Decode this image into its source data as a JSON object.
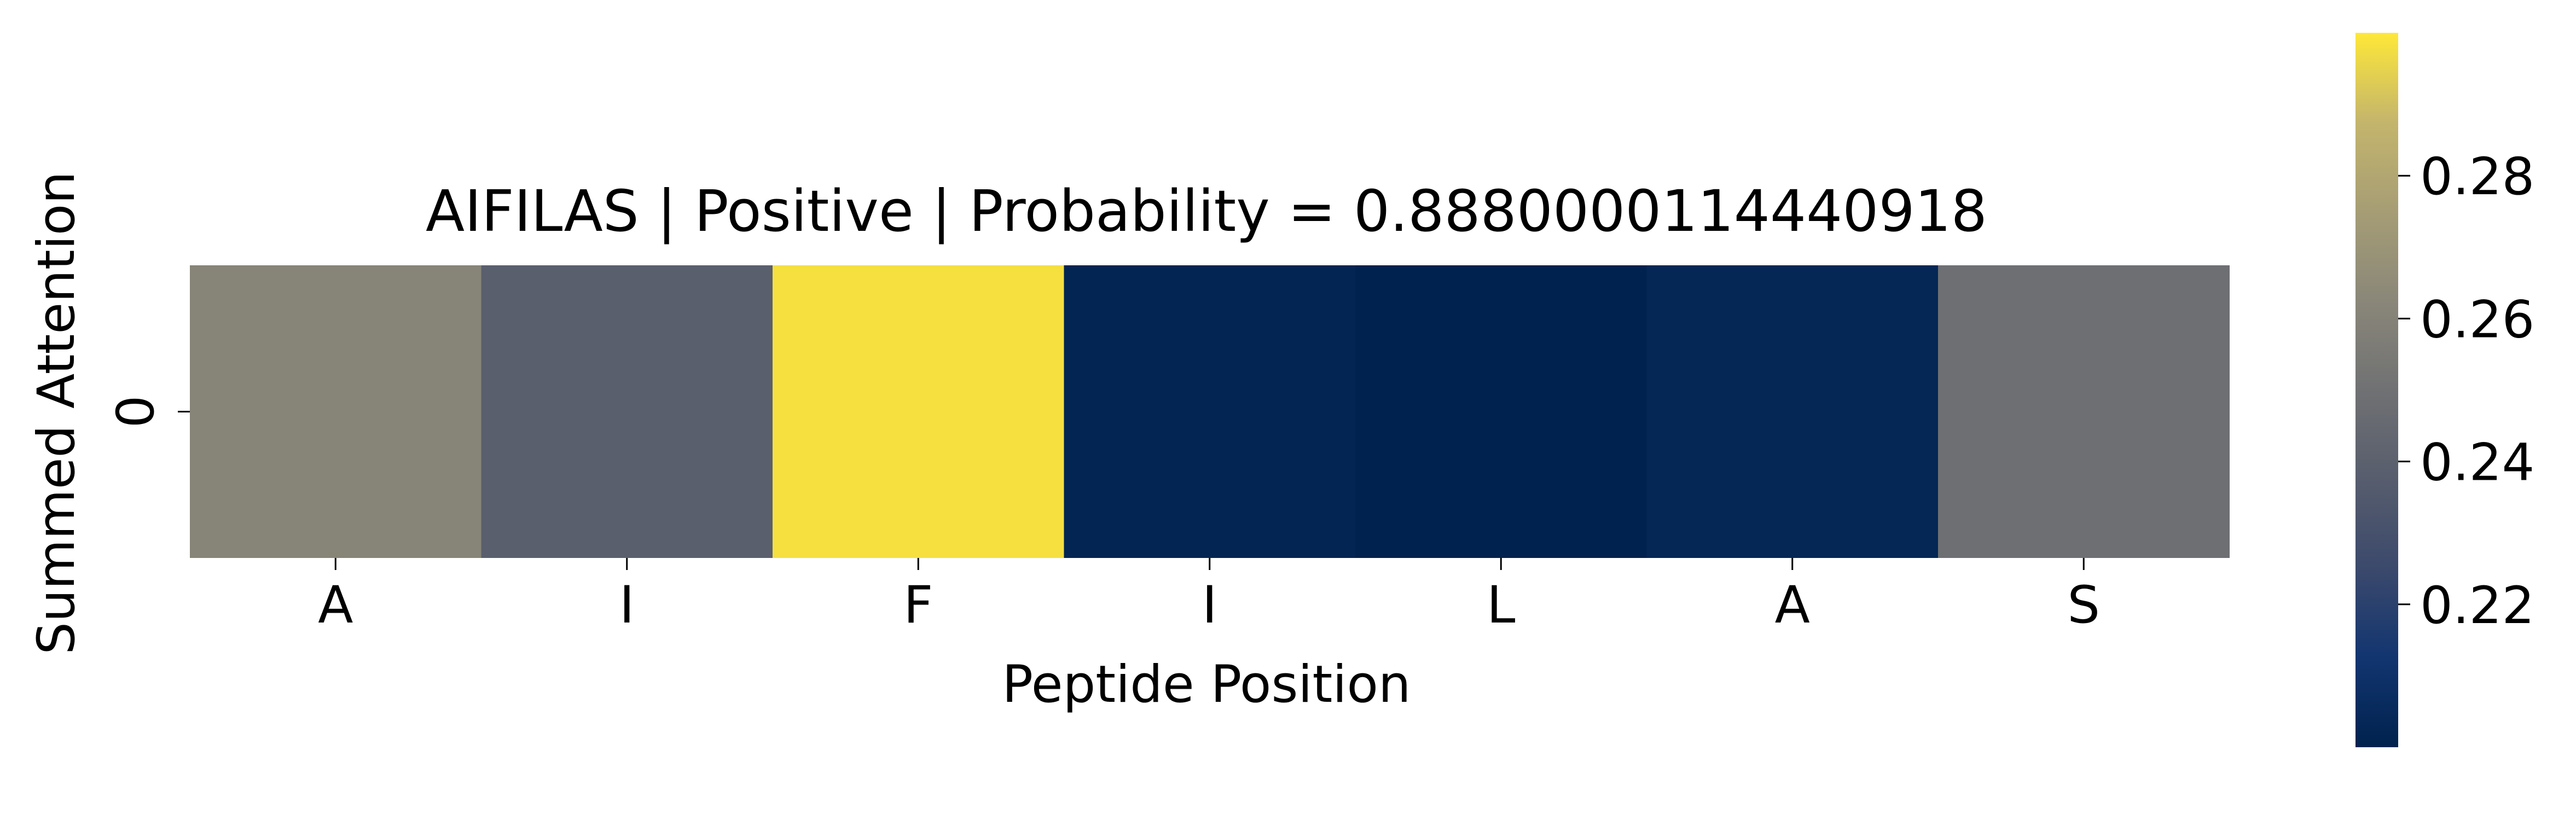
{
  "chart_data": {
    "type": "heatmap",
    "title": "AIFILAS | Positive | Probability = 0.8880000114440918",
    "xlabel": "Peptide Position",
    "ylabel": "Summed Attention",
    "x_categories": [
      "A",
      "I",
      "F",
      "I",
      "L",
      "A",
      "S"
    ],
    "y_categories": [
      "0"
    ],
    "values": [
      [
        0.261,
        0.239,
        0.298,
        0.202,
        0.2,
        0.203,
        0.249
      ]
    ],
    "colormap": "cividis",
    "colorbar": {
      "range": [
        0.2,
        0.3
      ],
      "ticks": [
        0.22,
        0.24,
        0.26,
        0.28
      ],
      "tick_labels": [
        "0.22",
        "0.24",
        "0.26",
        "0.28"
      ]
    },
    "colors": {
      "cmap_low": "#00224e",
      "cmap_mid": "#7c7b78",
      "cmap_high": "#fee838"
    }
  }
}
